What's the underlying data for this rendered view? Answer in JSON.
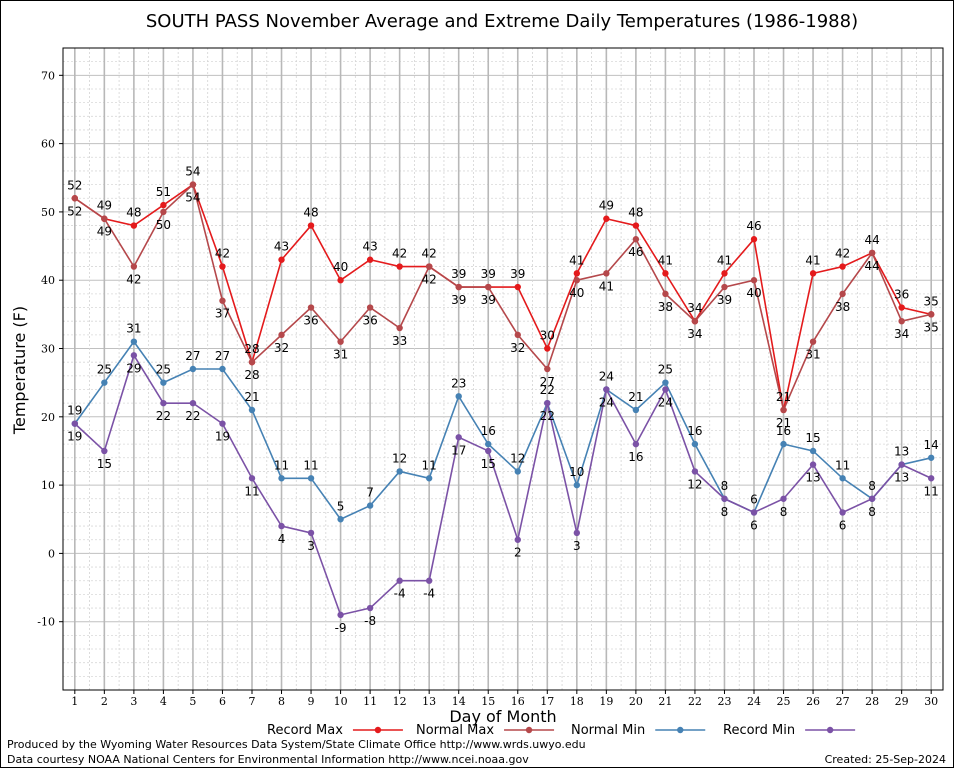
{
  "chart_data": {
    "type": "line",
    "title": "SOUTH PASS November Average and Extreme Daily Temperatures (1986-1988)",
    "xlabel": "Day of Month",
    "ylabel": "Temperature (F)",
    "x": [
      1,
      2,
      3,
      4,
      5,
      6,
      7,
      8,
      9,
      10,
      11,
      12,
      13,
      14,
      15,
      16,
      17,
      18,
      19,
      20,
      21,
      22,
      23,
      24,
      25,
      26,
      27,
      28,
      29,
      30
    ],
    "xlim": [
      0.6,
      30.4
    ],
    "ylim": [
      -20,
      74
    ],
    "yticks": [
      -10,
      0,
      10,
      20,
      30,
      40,
      50,
      60,
      70
    ],
    "grid": true,
    "legend_position": "bottom",
    "series": [
      {
        "name": "Record Max",
        "color": "#e41a1c",
        "values": [
          52,
          49,
          48,
          51,
          54,
          42,
          28,
          43,
          48,
          40,
          43,
          42,
          42,
          39,
          39,
          39,
          30,
          41,
          49,
          48,
          41,
          34,
          41,
          46,
          21,
          41,
          42,
          44,
          36,
          35
        ]
      },
      {
        "name": "Normal Max",
        "color": "#b5484b",
        "values": [
          52,
          49,
          42,
          50,
          54,
          37,
          28,
          32,
          36,
          31,
          36,
          33,
          42,
          39,
          39,
          32,
          27,
          40,
          41,
          46,
          38,
          34,
          39,
          40,
          21,
          31,
          38,
          44,
          34,
          35
        ]
      },
      {
        "name": "Normal Min",
        "color": "#4682b4",
        "values": [
          19,
          25,
          31,
          25,
          27,
          27,
          21,
          11,
          11,
          5,
          7,
          12,
          11,
          23,
          16,
          12,
          22,
          10,
          24,
          21,
          25,
          16,
          8,
          6,
          16,
          15,
          11,
          8,
          13,
          14
        ]
      },
      {
        "name": "Record Min",
        "color": "#7b52a6",
        "values": [
          19,
          15,
          29,
          22,
          22,
          19,
          11,
          4,
          3,
          -9,
          -8,
          -4,
          -4,
          17,
          15,
          2,
          22,
          3,
          24,
          16,
          24,
          12,
          8,
          6,
          8,
          13,
          6,
          8,
          13,
          11
        ]
      }
    ]
  },
  "footer": {
    "produced_by": "Produced by the Wyoming Water Resources Data System/State Climate Office http://www.wrds.uwyo.edu",
    "courtesy": "Data courtesy NOAA National Centers for Environmental Information http://www.ncei.noaa.gov",
    "created": "Created:  25-Sep-2024"
  }
}
